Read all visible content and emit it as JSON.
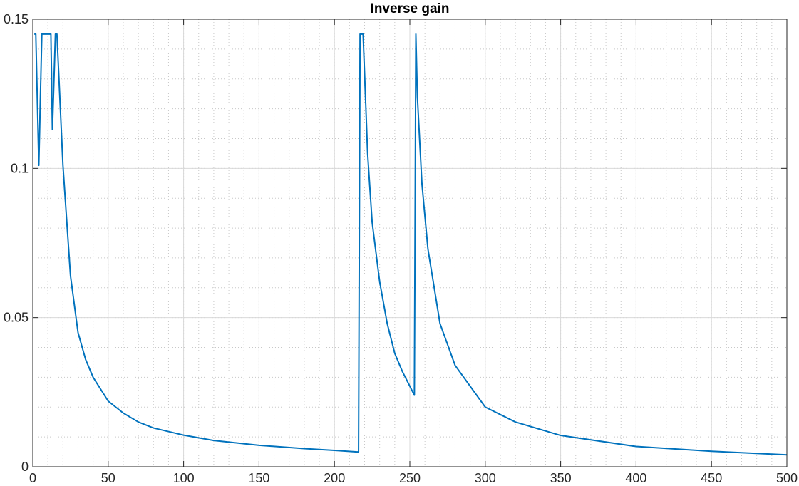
{
  "chart_data": {
    "type": "line",
    "title": "Inverse gain",
    "xlabel": "",
    "ylabel": "",
    "xlim": [
      0,
      500
    ],
    "ylim": [
      0,
      0.15
    ],
    "xticks": [
      0,
      50,
      100,
      150,
      200,
      250,
      300,
      350,
      400,
      450,
      500
    ],
    "xtick_labels": [
      "0",
      "50",
      "100",
      "150",
      "200",
      "250",
      "300",
      "350",
      "400",
      "450",
      "500"
    ],
    "yticks": [
      0,
      0.05,
      0.1,
      0.15
    ],
    "ytick_labels": [
      "0",
      "0.05",
      "0.1",
      "0.15"
    ],
    "grid": true,
    "minor_grid": true,
    "legend": "none",
    "series_color": "#0072bd",
    "series": [
      {
        "x": [
          1,
          2,
          4,
          6,
          10,
          12,
          13,
          15,
          16,
          20,
          25,
          30,
          35,
          40,
          50,
          60,
          70,
          80,
          100,
          120,
          150,
          180,
          200,
          215,
          216,
          217,
          218,
          219,
          222,
          225,
          230,
          235,
          240,
          245,
          250,
          253,
          254,
          255,
          258,
          262,
          270,
          280,
          300,
          320,
          350,
          400,
          450,
          500
        ],
        "y": [
          0.145,
          0.145,
          0.101,
          0.145,
          0.145,
          0.145,
          0.113,
          0.145,
          0.145,
          0.101,
          0.064,
          0.045,
          0.036,
          0.03,
          0.022,
          0.018,
          0.015,
          0.013,
          0.0106,
          0.0088,
          0.0072,
          0.0061,
          0.0055,
          0.005,
          0.005,
          0.145,
          0.145,
          0.145,
          0.105,
          0.082,
          0.062,
          0.048,
          0.038,
          0.032,
          0.027,
          0.024,
          0.145,
          0.124,
          0.095,
          0.073,
          0.048,
          0.034,
          0.02,
          0.015,
          0.0105,
          0.0068,
          0.0052,
          0.004
        ]
      }
    ]
  }
}
